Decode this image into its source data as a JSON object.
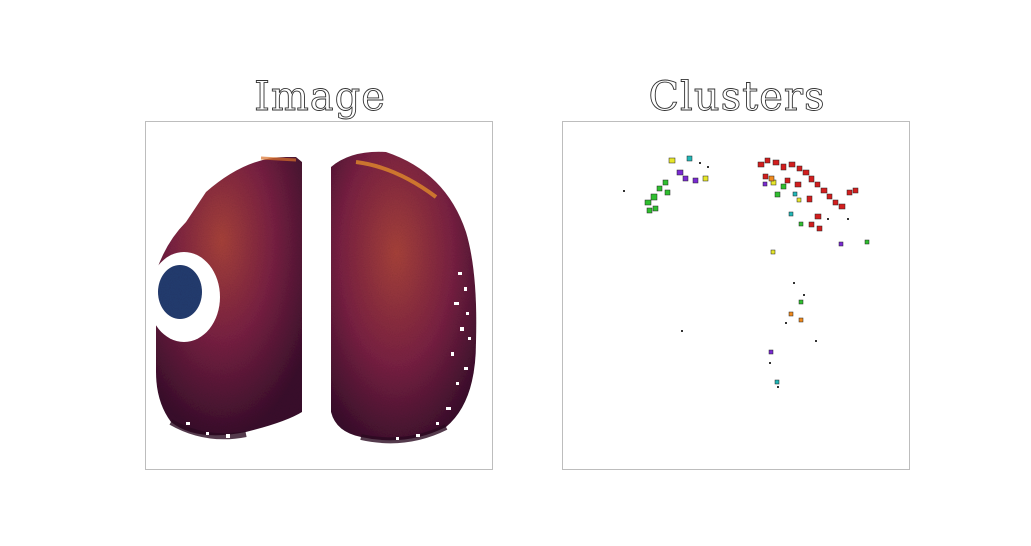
{
  "panels": [
    {
      "title": "Image"
    },
    {
      "title": "Clusters"
    }
  ],
  "colors": {
    "tissue_dark": "#3a0f2c",
    "tissue_mid": "#7a2143",
    "tissue_bright": "#a8423a",
    "tissue_hot": "#e08a2a",
    "blue_region": "#243c70",
    "cluster_red": "#d21e1e",
    "cluster_green": "#2fbf2f",
    "cluster_yellow": "#e6e62a",
    "cluster_purple": "#7a2ad2",
    "cluster_cyan": "#22b8b8",
    "cluster_orange": "#f08a1e"
  }
}
